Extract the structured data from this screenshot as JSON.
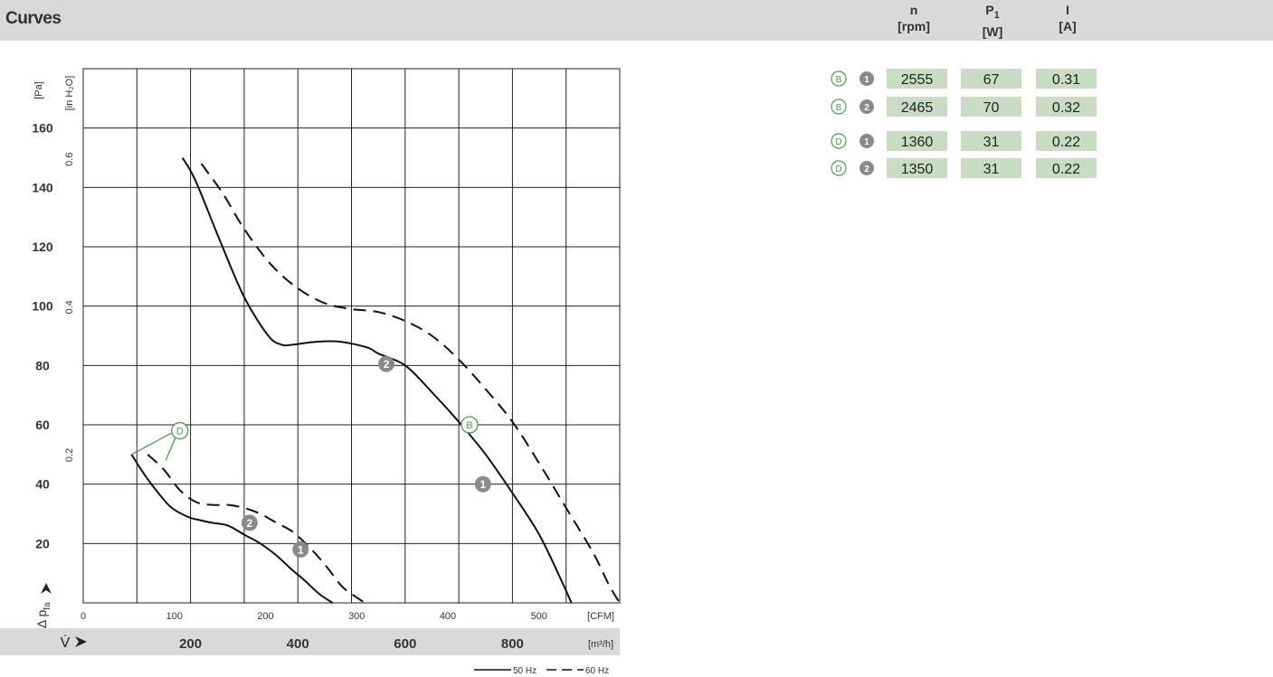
{
  "header": {
    "title": "Curves",
    "columns": [
      {
        "symbol": "n",
        "sub": "",
        "unit": "[rpm]"
      },
      {
        "symbol": "P",
        "sub": "1",
        "unit": "[W]"
      },
      {
        "symbol": "I",
        "sub": "",
        "unit": "[A]"
      }
    ]
  },
  "table": {
    "rows": [
      {
        "curve": "B",
        "point": "1",
        "n": "2555",
        "p1": "67",
        "i": "0.31"
      },
      {
        "curve": "B",
        "point": "2",
        "n": "2465",
        "p1": "70",
        "i": "0.32"
      },
      {
        "curve": "D",
        "point": "1",
        "n": "1360",
        "p1": "31",
        "i": "0.22"
      },
      {
        "curve": "D",
        "point": "2",
        "n": "1350",
        "p1": "31",
        "i": "0.22"
      }
    ],
    "cell_color": "#c9dcc4",
    "marker_color": "#4f9a52"
  },
  "chart_data": {
    "type": "line",
    "x_unit_m3h": "[m³/h]",
    "x_unit_cfm": "[CFM]",
    "x_label": "V̇",
    "y_unit_pa": "[Pa]",
    "y_unit_inh2o": "[in H₂O]",
    "y_label": "Δ p",
    "y_label_sub": "fa",
    "xlim": [
      0,
      1000
    ],
    "ylim": [
      0,
      180
    ],
    "x_ticks_m3h": [
      "200",
      "400",
      "600",
      "800"
    ],
    "x_ticks_cfm": [
      "0",
      "100",
      "200",
      "300",
      "400",
      "500"
    ],
    "y_ticks_pa": [
      "20",
      "40",
      "60",
      "80",
      "100",
      "120",
      "140",
      "160"
    ],
    "y_ticks_inh2o": [
      "0.2",
      "0.4",
      "0.6"
    ],
    "series": [
      {
        "curve": "B",
        "freq": "50 Hz",
        "x": [
          185,
          210,
          255,
          300,
          345,
          370,
          390,
          435,
          480,
          530,
          550,
          600,
          650,
          700,
          750,
          800,
          850,
          890,
          910
        ],
        "y": [
          150,
          142,
          122,
          103,
          90,
          87,
          87,
          88,
          88,
          86,
          84,
          80,
          71,
          61,
          50,
          37,
          23,
          8,
          0
        ]
      },
      {
        "curve": "B",
        "freq": "60 Hz",
        "x": [
          220,
          260,
          300,
          350,
          400,
          450,
          500,
          550,
          600,
          650,
          700,
          750,
          800,
          850,
          900,
          950,
          980,
          1000
        ],
        "y": [
          148,
          138,
          126,
          114,
          106,
          101,
          99,
          98,
          95,
          90,
          82,
          72,
          61,
          47,
          32,
          17,
          6,
          0
        ]
      },
      {
        "curve": "D",
        "freq": "50 Hz",
        "x": [
          90,
          115,
          140,
          165,
          195,
          215,
          240,
          270,
          300,
          330,
          360,
          390,
          410,
          440,
          465
        ],
        "y": [
          50,
          43,
          37,
          32,
          29,
          28,
          27,
          26,
          23,
          20,
          16,
          11,
          8,
          3,
          0
        ]
      },
      {
        "curve": "D",
        "freq": "60 Hz",
        "x": [
          120,
          150,
          180,
          210,
          240,
          270,
          300,
          330,
          360,
          390,
          420,
          450,
          480,
          500,
          525
        ],
        "y": [
          50,
          45,
          38,
          34,
          33,
          33,
          32,
          30,
          27,
          24,
          19,
          13,
          6,
          3,
          0
        ]
      }
    ],
    "markers": [
      {
        "label": "2",
        "x": 565,
        "y": 80.5,
        "style": "gray"
      },
      {
        "label": "1",
        "x": 745,
        "y": 40,
        "style": "gray"
      },
      {
        "label": "2",
        "x": 310,
        "y": 27,
        "style": "gray"
      },
      {
        "label": "1",
        "x": 405,
        "y": 18,
        "style": "gray"
      },
      {
        "label": "B",
        "x": 720,
        "y": 60,
        "style": "green"
      },
      {
        "label": "D",
        "x": 180,
        "y": 58,
        "style": "green"
      }
    ],
    "legend": [
      {
        "label": "50 Hz",
        "dash": false
      },
      {
        "label": "60 Hz",
        "dash": true
      }
    ]
  }
}
